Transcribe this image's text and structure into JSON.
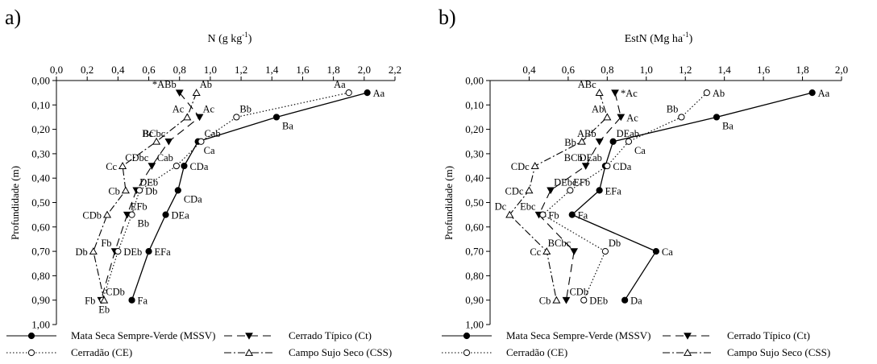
{
  "legend": [
    {
      "label": "Mata Seca Sempre-Verde (MSSV)",
      "dash": "",
      "marker": "filled-circle",
      "marker_name": "filled-circle-marker"
    },
    {
      "label": "Cerrado Típico (Ct)",
      "dash": "10,6",
      "marker": "filled-triangle-down",
      "marker_name": "filled-triangle-down-marker"
    },
    {
      "label": "Cerradão (CE)",
      "dash": "1.5,2.5",
      "marker": "open-circle",
      "marker_name": "open-circle-marker"
    },
    {
      "label": "Campo Sujo Seco (CSS)",
      "dash": "9,3,2,3",
      "marker": "open-triangle-up",
      "marker_name": "open-triangle-up-marker"
    }
  ],
  "chart_data": [
    {
      "panel_label": "a)",
      "type": "line",
      "title": "",
      "xlabel": "N (g kg",
      "xlabel_sup": "-1",
      "xlabel_end": ")",
      "ylabel": "Profundidade (m)",
      "x_axis_position": "top",
      "xlim": [
        0,
        2.2
      ],
      "ylim": [
        0,
        1.0
      ],
      "y_inverted": true,
      "grid": false,
      "x_ticks": [
        0,
        0.2,
        0.4,
        0.6,
        0.8,
        1.0,
        1.2,
        1.4,
        1.6,
        1.8,
        2.0,
        2.2
      ],
      "x_tick_labels": [
        "0,0",
        "0,2",
        "0,4",
        "0,6",
        "0,8",
        "1,0",
        "1,2",
        "1,4",
        "1,6",
        "1,8",
        "2,0",
        "2,2"
      ],
      "y_ticks": [
        0,
        0.1,
        0.2,
        0.3,
        0.4,
        0.5,
        0.6,
        0.7,
        0.8,
        0.9,
        1.0
      ],
      "y_tick_labels": [
        "0,00",
        "0,10",
        "0,20",
        "0,30",
        "0,40",
        "0,50",
        "0,60",
        "0,70",
        "0,80",
        "0,90",
        "1,00"
      ],
      "star_label": "*",
      "series": [
        {
          "name": "Mata Seca Sempre-Verde (MSSV)",
          "points": [
            {
              "x": 2.02,
              "y": 0.05,
              "label": "Aa",
              "lpos": "right"
            },
            {
              "x": 1.43,
              "y": 0.15,
              "label": "Ba",
              "lpos": "below-right"
            },
            {
              "x": 0.92,
              "y": 0.25,
              "label": "Ca",
              "lpos": "below-right"
            },
            {
              "x": 0.83,
              "y": 0.35,
              "label": "CDa",
              "lpos": "right"
            },
            {
              "x": 0.79,
              "y": 0.45,
              "label": "CDa",
              "lpos": "below-right"
            },
            {
              "x": 0.71,
              "y": 0.55,
              "label": "DEa",
              "lpos": "right"
            },
            {
              "x": 0.6,
              "y": 0.7,
              "label": "EFa",
              "lpos": "right"
            },
            {
              "x": 0.49,
              "y": 0.9,
              "label": "Fa",
              "lpos": "right"
            }
          ]
        },
        {
          "name": "Cerrado Típico (Ct)",
          "points": [
            {
              "x": 0.8,
              "y": 0.05,
              "label": "ABb",
              "lpos": "above-left"
            },
            {
              "x": 0.93,
              "y": 0.15,
              "label": "Ac",
              "lpos": "above-right"
            },
            {
              "x": 0.73,
              "y": 0.25,
              "label": "BCbc",
              "lpos": "above-left"
            },
            {
              "x": 0.62,
              "y": 0.35,
              "label": "CDbc",
              "lpos": "above-left"
            },
            {
              "x": 0.52,
              "y": 0.45,
              "label": "DEb",
              "lpos": "above-right"
            },
            {
              "x": 0.46,
              "y": 0.55,
              "label": "EFb",
              "lpos": "above-right"
            },
            {
              "x": 0.38,
              "y": 0.7,
              "label": "Fb",
              "lpos": "above-left"
            },
            {
              "x": 0.29,
              "y": 0.9,
              "label": "Fb",
              "lpos": "left"
            }
          ]
        },
        {
          "name": "Cerradão (CE)",
          "points": [
            {
              "x": 1.9,
              "y": 0.05,
              "label": "Aa",
              "lpos": "above-left"
            },
            {
              "x": 1.17,
              "y": 0.15,
              "label": "Bb",
              "lpos": "above-right"
            },
            {
              "x": 0.94,
              "y": 0.25,
              "label": "Cab",
              "lpos": "above-right"
            },
            {
              "x": 0.78,
              "y": 0.35,
              "label": "Cab",
              "lpos": "above-left"
            },
            {
              "x": 0.54,
              "y": 0.45,
              "label": "Db",
              "lpos": "right"
            },
            {
              "x": 0.49,
              "y": 0.55,
              "label": "Bb",
              "lpos": "below-right"
            },
            {
              "x": 0.4,
              "y": 0.7,
              "label": "DEb",
              "lpos": "right"
            },
            {
              "x": 0.3,
              "y": 0.9,
              "label": "CDb",
              "lpos": "above-right"
            }
          ]
        },
        {
          "name": "Campo Sujo Seco (CSS)",
          "points": [
            {
              "x": 0.91,
              "y": 0.05,
              "label": "Ab",
              "lpos": "above-right"
            },
            {
              "x": 0.85,
              "y": 0.15,
              "label": "Ac",
              "lpos": "above-left"
            },
            {
              "x": 0.65,
              "y": 0.25,
              "label": "Bc",
              "lpos": "above-left"
            },
            {
              "x": 0.43,
              "y": 0.35,
              "label": "Cc",
              "lpos": "left"
            },
            {
              "x": 0.45,
              "y": 0.45,
              "label": "Cb",
              "lpos": "left"
            },
            {
              "x": 0.33,
              "y": 0.55,
              "label": "CDb",
              "lpos": "left"
            },
            {
              "x": 0.24,
              "y": 0.7,
              "label": "Db",
              "lpos": "left"
            },
            {
              "x": 0.31,
              "y": 0.9,
              "label": "Eb",
              "lpos": "below"
            }
          ]
        }
      ]
    },
    {
      "panel_label": "b)",
      "type": "line",
      "title": "",
      "xlabel": "EstN (Mg ha",
      "xlabel_sup": "-1",
      "xlabel_end": ")",
      "ylabel": "Profundidade (m)",
      "x_axis_position": "top",
      "xlim": [
        0.2,
        2.0
      ],
      "ylim": [
        0,
        1.0
      ],
      "y_inverted": true,
      "grid": false,
      "x_ticks": [
        0.4,
        0.6,
        0.8,
        1.0,
        1.2,
        1.4,
        1.6,
        1.8,
        2.0
      ],
      "x_tick_labels": [
        "0,4",
        "0,6",
        "0,8",
        "1,0",
        "1,2",
        "1,4",
        "1,6",
        "1,8",
        "2,0"
      ],
      "y_ticks": [
        0,
        0.1,
        0.2,
        0.3,
        0.4,
        0.5,
        0.6,
        0.7,
        0.8,
        0.9,
        1.0
      ],
      "y_tick_labels": [
        "0,00",
        "0,10",
        "0,20",
        "0,30",
        "0,40",
        "0,50",
        "0,60",
        "0,70",
        "0,80",
        "0,90",
        "1,00"
      ],
      "star_label": "*",
      "series": [
        {
          "name": "Mata Seca Sempre-Verde (MSSV)",
          "points": [
            {
              "x": 1.85,
              "y": 0.05,
              "label": "Aa",
              "lpos": "right"
            },
            {
              "x": 1.36,
              "y": 0.15,
              "label": "Ba",
              "lpos": "below-right"
            },
            {
              "x": 0.83,
              "y": 0.25,
              "label": "DEab",
              "lpos": "above-right"
            },
            {
              "x": 0.79,
              "y": 0.35,
              "label": "DEab",
              "lpos": "above-left"
            },
            {
              "x": 0.76,
              "y": 0.45,
              "label": "EFa",
              "lpos": "right"
            },
            {
              "x": 0.62,
              "y": 0.55,
              "label": "Fa",
              "lpos": "right"
            },
            {
              "x": 1.05,
              "y": 0.7,
              "label": "Ca",
              "lpos": "right"
            },
            {
              "x": 0.89,
              "y": 0.9,
              "label": "Da",
              "lpos": "right"
            }
          ]
        },
        {
          "name": "Cerrado Típico (Ct)",
          "points": [
            {
              "x": 0.84,
              "y": 0.05,
              "label": "Ac",
              "lpos": "right"
            },
            {
              "x": 0.87,
              "y": 0.15,
              "label": "Ac",
              "lpos": "right"
            },
            {
              "x": 0.76,
              "y": 0.25,
              "label": "ABb",
              "lpos": "above-left"
            },
            {
              "x": 0.69,
              "y": 0.35,
              "label": "BCb",
              "lpos": "above-left"
            },
            {
              "x": 0.51,
              "y": 0.45,
              "label": "DEbc",
              "lpos": "above-right"
            },
            {
              "x": 0.45,
              "y": 0.55,
              "label": "Ebc",
              "lpos": "above-left"
            },
            {
              "x": 0.63,
              "y": 0.7,
              "label": "BCbc",
              "lpos": "above-left"
            },
            {
              "x": 0.59,
              "y": 0.9,
              "label": "CDb",
              "lpos": "above-right"
            }
          ]
        },
        {
          "name": "Cerradão (CE)",
          "points": [
            {
              "x": 1.31,
              "y": 0.05,
              "label": "Ab",
              "lpos": "right"
            },
            {
              "x": 1.18,
              "y": 0.15,
              "label": "Bb",
              "lpos": "above-left"
            },
            {
              "x": 0.91,
              "y": 0.25,
              "label": "Ca",
              "lpos": "below-right"
            },
            {
              "x": 0.8,
              "y": 0.35,
              "label": "CDa",
              "lpos": "right"
            },
            {
              "x": 0.61,
              "y": 0.45,
              "label": "EFb",
              "lpos": "above-right"
            },
            {
              "x": 0.47,
              "y": 0.55,
              "label": "Fb",
              "lpos": "right"
            },
            {
              "x": 0.79,
              "y": 0.7,
              "label": "Db",
              "lpos": "above-right"
            },
            {
              "x": 0.68,
              "y": 0.9,
              "label": "DEb",
              "lpos": "right"
            }
          ]
        },
        {
          "name": "Campo Sujo Seco (CSS)",
          "points": [
            {
              "x": 0.76,
              "y": 0.05,
              "label": "ABc",
              "lpos": "above-left"
            },
            {
              "x": 0.8,
              "y": 0.15,
              "label": "Ab",
              "lpos": "above-left"
            },
            {
              "x": 0.67,
              "y": 0.25,
              "label": "Bb",
              "lpos": "left"
            },
            {
              "x": 0.43,
              "y": 0.35,
              "label": "CDc",
              "lpos": "left"
            },
            {
              "x": 0.4,
              "y": 0.45,
              "label": "CDc",
              "lpos": "left"
            },
            {
              "x": 0.3,
              "y": 0.55,
              "label": "Dc",
              "lpos": "above-left"
            },
            {
              "x": 0.49,
              "y": 0.7,
              "label": "Cc",
              "lpos": "left"
            },
            {
              "x": 0.54,
              "y": 0.9,
              "label": "Cb",
              "lpos": "left"
            }
          ]
        }
      ]
    }
  ]
}
